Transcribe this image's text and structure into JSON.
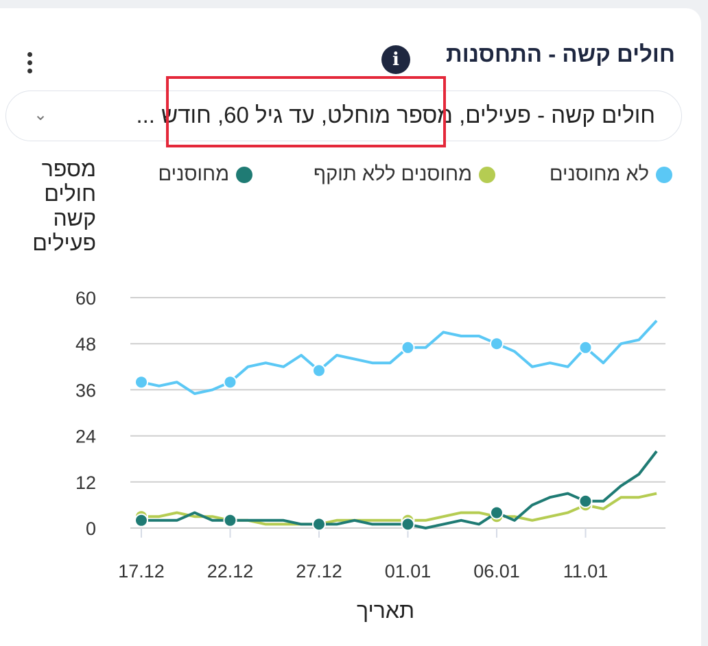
{
  "title": "חולים קשה - התחסנות",
  "info_icon": "i",
  "filter": {
    "value": "חולים קשה - פעילים, מספר מוחלט, עד גיל 60, חודש ..."
  },
  "colors": {
    "not_vaccinated": "#5bc8f5",
    "expired": "#b5cc52",
    "vaccinated": "#1f7b74",
    "highlight": "#e4283a"
  },
  "chart_data": {
    "type": "line",
    "title": "חולים קשה - התחסנות",
    "xlabel": "תאריך",
    "ylabel": "מספר חולים קשה פעילים",
    "ylim": [
      0,
      60
    ],
    "yticks": [
      0,
      12,
      24,
      36,
      48,
      60
    ],
    "xtick_labels": [
      "17.12",
      "22.12",
      "27.12",
      "01.01",
      "06.01",
      "11.01"
    ],
    "x": [
      "17.12",
      "18.12",
      "19.12",
      "20.12",
      "21.12",
      "22.12",
      "23.12",
      "24.12",
      "25.12",
      "26.12",
      "27.12",
      "28.12",
      "29.12",
      "30.12",
      "31.12",
      "01.01",
      "02.01",
      "03.01",
      "04.01",
      "05.01",
      "06.01",
      "07.01",
      "08.01",
      "09.01",
      "10.01",
      "11.01",
      "12.01",
      "13.01",
      "14.01",
      "15.01"
    ],
    "legend_position": "top",
    "grid": true,
    "series": [
      {
        "name": "לא מחוסנים",
        "color": "#5bc8f5",
        "values": [
          38,
          37,
          38,
          35,
          36,
          38,
          42,
          43,
          42,
          45,
          41,
          45,
          44,
          43,
          43,
          47,
          47,
          51,
          50,
          50,
          48,
          46,
          42,
          43,
          42,
          47,
          43,
          48,
          49,
          54
        ]
      },
      {
        "name": "מחוסנים ללא תוקף",
        "color": "#b5cc52",
        "values": [
          3,
          3,
          4,
          3,
          3,
          2,
          2,
          1,
          1,
          1,
          1,
          2,
          2,
          2,
          2,
          2,
          2,
          3,
          4,
          4,
          3,
          3,
          2,
          3,
          4,
          6,
          5,
          8,
          8,
          9
        ]
      },
      {
        "name": "מחוסנים",
        "color": "#1f7b74",
        "values": [
          2,
          2,
          2,
          4,
          2,
          2,
          2,
          2,
          2,
          1,
          1,
          1,
          2,
          1,
          1,
          1,
          0,
          1,
          2,
          1,
          4,
          2,
          6,
          8,
          9,
          7,
          7,
          11,
          14,
          20
        ]
      }
    ]
  }
}
